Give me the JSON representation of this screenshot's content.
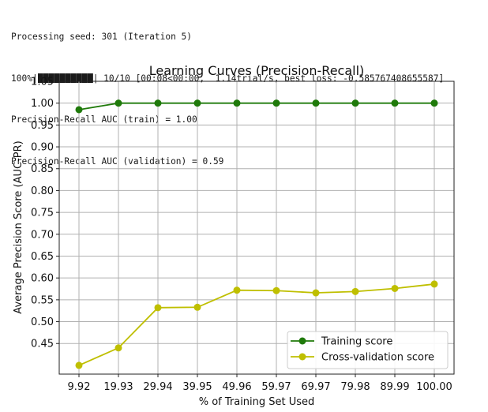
{
  "console": {
    "line1": "Processing seed: 301 (Iteration 5)",
    "progress_pct": "100%|",
    "progress_rest": "| 10/10 [00:08<00:00,  1.14trial/s, best loss: -0.585767408655587]",
    "line3": "Precision-Recall AUC (train) = 1.00",
    "line4": "Precision-Recall AUC (validation) = 0.59"
  },
  "chart_data": {
    "type": "line",
    "title": "Learning Curves (Precision-Recall)",
    "xlabel": "% of Training Set Used",
    "ylabel": "Average Precision Score (AUC-PR)",
    "categories": [
      "9.92",
      "19.93",
      "29.94",
      "39.95",
      "49.96",
      "59.97",
      "69.97",
      "79.98",
      "89.99",
      "100.00"
    ],
    "series": [
      {
        "name": "Training score",
        "color": "#1f7a0a",
        "values": [
          0.985,
          1.0,
          1.0,
          1.0,
          1.0,
          1.0,
          1.0,
          1.0,
          1.0,
          1.0
        ]
      },
      {
        "name": "Cross-validation score",
        "color": "#bfbf00",
        "values": [
          0.4,
          0.44,
          0.532,
          0.533,
          0.572,
          0.571,
          0.566,
          0.569,
          0.576,
          0.586
        ]
      }
    ],
    "ylim": [
      0.38,
      1.05
    ],
    "yticks": [
      "0.45",
      "0.50",
      "0.55",
      "0.60",
      "0.65",
      "0.70",
      "0.75",
      "0.80",
      "0.85",
      "0.90",
      "0.95",
      "1.00",
      "1.05"
    ],
    "grid": true,
    "legend_position": "bottom-right"
  }
}
